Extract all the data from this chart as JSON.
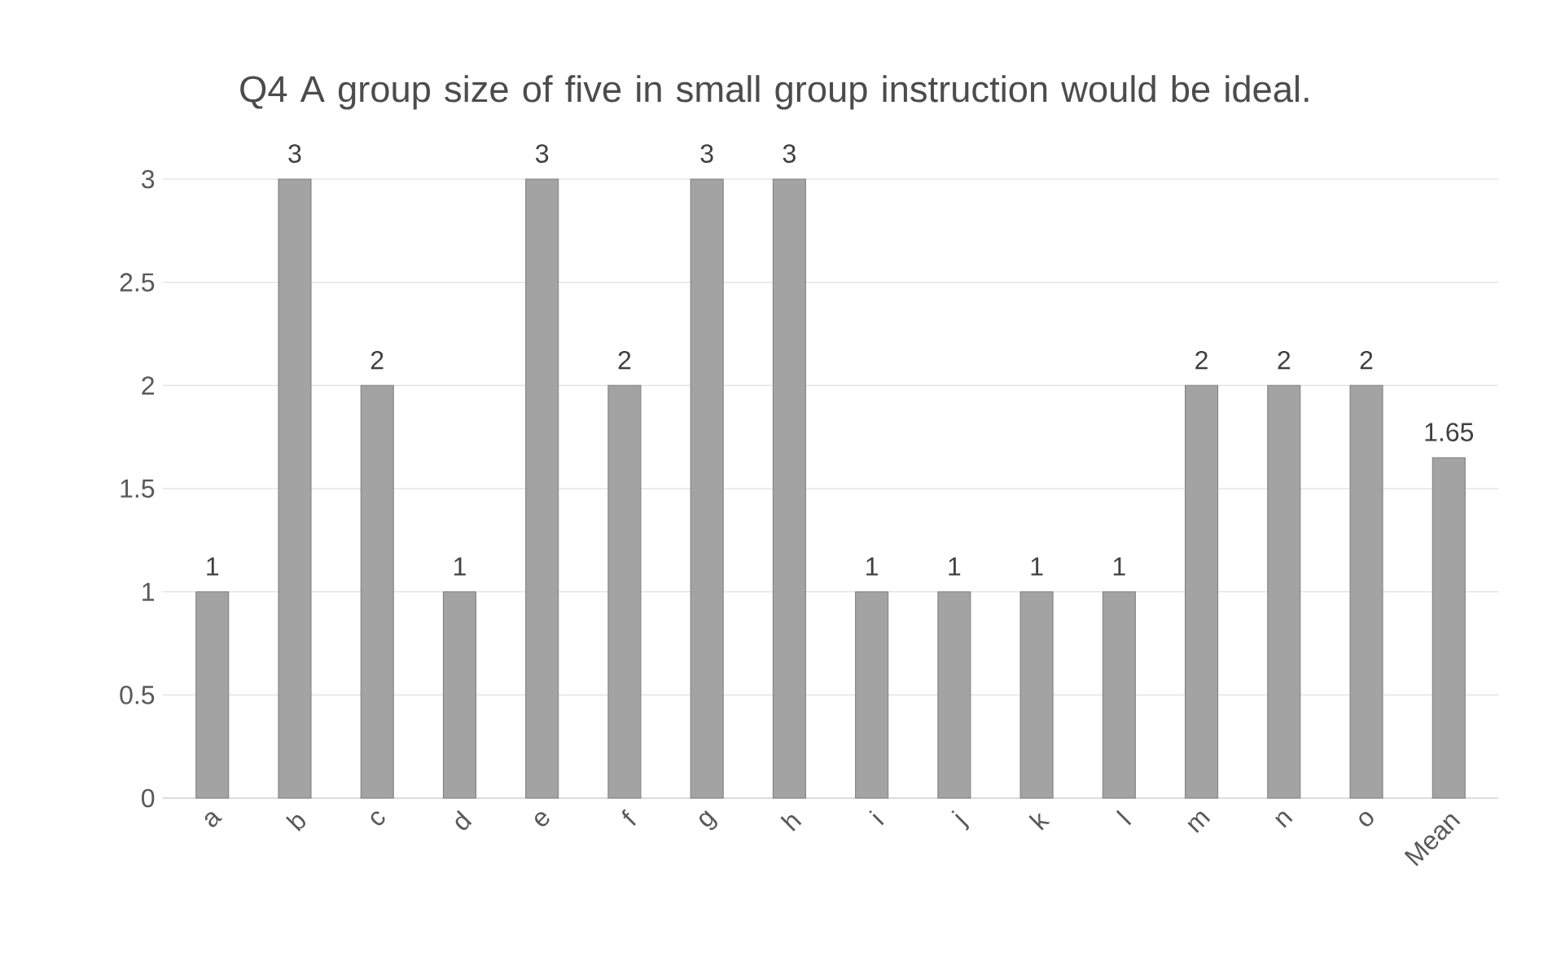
{
  "chart_data": {
    "type": "bar",
    "title": "Q4  A group size of five in small group instruction would be ideal.",
    "categories": [
      "a",
      "b",
      "c",
      "d",
      "e",
      "f",
      "g",
      "h",
      "i",
      "j",
      "k",
      "l",
      "m",
      "n",
      "o",
      "Mean"
    ],
    "values": [
      1,
      3,
      2,
      1,
      3,
      2,
      3,
      3,
      1,
      1,
      1,
      1,
      2,
      2,
      2,
      1.65
    ],
    "color": "#a3a3a3",
    "ylim": [
      0,
      3
    ],
    "yticks": [
      0,
      0.5,
      1,
      1.5,
      2,
      2.5,
      3
    ],
    "grid": "y",
    "data_labels": true
  }
}
